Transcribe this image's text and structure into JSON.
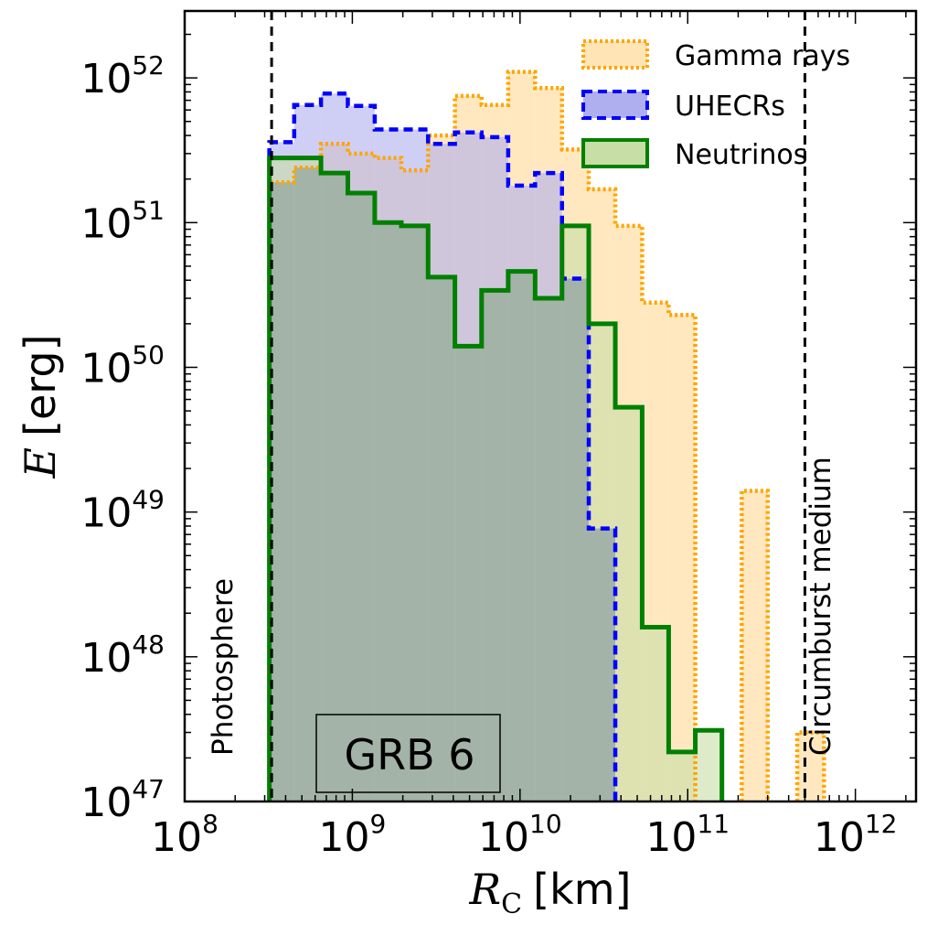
{
  "chart_data": {
    "type": "histogram",
    "title": "",
    "xlabel": {
      "symbol": "R",
      "subscript": "C",
      "unit": "[km]"
    },
    "ylabel": {
      "symbol": "E",
      "unit": "[erg]"
    },
    "xscale": "log",
    "yscale": "log",
    "xlim": [
      100000000.0,
      2300000000000.0
    ],
    "ylim": [
      1e+47,
      2.9e+52
    ],
    "x_ticks": [
      {
        "base": "10",
        "exp": "8"
      },
      {
        "base": "10",
        "exp": "9"
      },
      {
        "base": "10",
        "exp": "10"
      },
      {
        "base": "10",
        "exp": "11"
      },
      {
        "base": "10",
        "exp": "12"
      }
    ],
    "y_ticks": [
      {
        "base": "10",
        "exp": "47"
      },
      {
        "base": "10",
        "exp": "48"
      },
      {
        "base": "10",
        "exp": "49"
      },
      {
        "base": "10",
        "exp": "50"
      },
      {
        "base": "10",
        "exp": "51"
      },
      {
        "base": "10",
        "exp": "52"
      }
    ],
    "legend_position": "top-right",
    "series": [
      {
        "name": "Gamma rays",
        "style": "dotted",
        "color": "#FFA500",
        "fill": "#FFE4B5",
        "bins": [
          {
            "x0": 320000000.0,
            "x1": 450000000.0,
            "value": 1.9e+51
          },
          {
            "x0": 450000000.0,
            "x1": 650000000.0,
            "value": 2.4e+51
          },
          {
            "x0": 650000000.0,
            "x1": 940000000.0,
            "value": 3.5e+51
          },
          {
            "x0": 940000000.0,
            "x1": 1360000000.0,
            "value": 3e+51
          },
          {
            "x0": 1360000000.0,
            "x1": 1960000000.0,
            "value": 2.8e+51
          },
          {
            "x0": 1960000000.0,
            "x1": 2830000000.0,
            "value": 2.3e+51
          },
          {
            "x0": 2830000000.0,
            "x1": 4090000000.0,
            "value": 4e+51
          },
          {
            "x0": 4090000000.0,
            "x1": 5900000000.0,
            "value": 7.5e+51
          },
          {
            "x0": 5900000000.0,
            "x1": 8500000000.0,
            "value": 6.5e+51
          },
          {
            "x0": 8500000000.0,
            "x1": 12300000000.0,
            "value": 1.1e+52
          },
          {
            "x0": 12300000000.0,
            "x1": 17800000000.0,
            "value": 8.5e+51
          },
          {
            "x0": 17800000000.0,
            "x1": 25700000000.0,
            "value": 3.2e+51
          },
          {
            "x0": 25700000000.0,
            "x1": 37000000000.0,
            "value": 1.7e+51
          },
          {
            "x0": 37000000000.0,
            "x1": 53500000000.0,
            "value": 9.5e+50
          },
          {
            "x0": 53500000000.0,
            "x1": 77000000000.0,
            "value": 2.8e+50
          },
          {
            "x0": 77000000000.0,
            "x1": 111000000000.0,
            "value": 2.3e+50
          },
          {
            "x0": 210000000000.0,
            "x1": 300000000000.0,
            "value": 1.4e+49
          },
          {
            "x0": 450000000000.0,
            "x1": 650000000000.0,
            "value": 3e+47
          }
        ]
      },
      {
        "name": "UHECRs",
        "style": "dashed",
        "color": "#0000FF",
        "fill": "#AFAFEF",
        "bins": [
          {
            "x0": 320000000.0,
            "x1": 450000000.0,
            "value": 3.6e+51
          },
          {
            "x0": 450000000.0,
            "x1": 650000000.0,
            "value": 6.5e+51
          },
          {
            "x0": 650000000.0,
            "x1": 940000000.0,
            "value": 7.8e+51
          },
          {
            "x0": 940000000.0,
            "x1": 1360000000.0,
            "value": 6.4e+51
          },
          {
            "x0": 1360000000.0,
            "x1": 1960000000.0,
            "value": 4.4e+51
          },
          {
            "x0": 1960000000.0,
            "x1": 2830000000.0,
            "value": 4.4e+51
          },
          {
            "x0": 2830000000.0,
            "x1": 4090000000.0,
            "value": 3.5e+51
          },
          {
            "x0": 4090000000.0,
            "x1": 5900000000.0,
            "value": 4.2e+51
          },
          {
            "x0": 5900000000.0,
            "x1": 8500000000.0,
            "value": 3.9e+51
          },
          {
            "x0": 8500000000.0,
            "x1": 12300000000.0,
            "value": 1.8e+51
          },
          {
            "x0": 12300000000.0,
            "x1": 17800000000.0,
            "value": 2.2e+51
          },
          {
            "x0": 17800000000.0,
            "x1": 25700000000.0,
            "value": 4.1e+50
          },
          {
            "x0": 25700000000.0,
            "x1": 37000000000.0,
            "value": 7.7e+48
          }
        ]
      },
      {
        "name": "Neutrinos",
        "style": "solid",
        "color": "#008000",
        "fill": "#C8DEA7",
        "bins": [
          {
            "x0": 320000000.0,
            "x1": 450000000.0,
            "value": 2.8e+51
          },
          {
            "x0": 450000000.0,
            "x1": 650000000.0,
            "value": 2.8e+51
          },
          {
            "x0": 650000000.0,
            "x1": 940000000.0,
            "value": 2.2e+51
          },
          {
            "x0": 940000000.0,
            "x1": 1360000000.0,
            "value": 1.6e+51
          },
          {
            "x0": 1360000000.0,
            "x1": 1960000000.0,
            "value": 1e+51
          },
          {
            "x0": 1960000000.0,
            "x1": 2830000000.0,
            "value": 9.5e+50
          },
          {
            "x0": 2830000000.0,
            "x1": 4090000000.0,
            "value": 4.2e+50
          },
          {
            "x0": 4090000000.0,
            "x1": 5900000000.0,
            "value": 1.4e+50
          },
          {
            "x0": 5900000000.0,
            "x1": 8500000000.0,
            "value": 3.4e+50
          },
          {
            "x0": 8500000000.0,
            "x1": 12300000000.0,
            "value": 4.6e+50
          },
          {
            "x0": 12300000000.0,
            "x1": 17800000000.0,
            "value": 3e+50
          },
          {
            "x0": 17800000000.0,
            "x1": 25700000000.0,
            "value": 9.5e+50
          },
          {
            "x0": 25700000000.0,
            "x1": 37000000000.0,
            "value": 2e+50
          },
          {
            "x0": 37000000000.0,
            "x1": 53500000000.0,
            "value": 5.3e+49
          },
          {
            "x0": 53500000000.0,
            "x1": 77000000000.0,
            "value": 1.6e+48
          },
          {
            "x0": 77000000000.0,
            "x1": 111000000000.0,
            "value": 2.2e+47
          },
          {
            "x0": 111000000000.0,
            "x1": 160000000000.0,
            "value": 3.1e+47
          }
        ]
      }
    ],
    "overlap_fill": "#A3B3A7",
    "vertical_lines": [
      {
        "x": 330000000.0,
        "label": "Photosphere",
        "style": "dashed"
      },
      {
        "x": 500000000000.0,
        "label": "Circumburst medium",
        "style": "dashed"
      }
    ],
    "annotation_box": {
      "text": "GRB 6"
    }
  }
}
